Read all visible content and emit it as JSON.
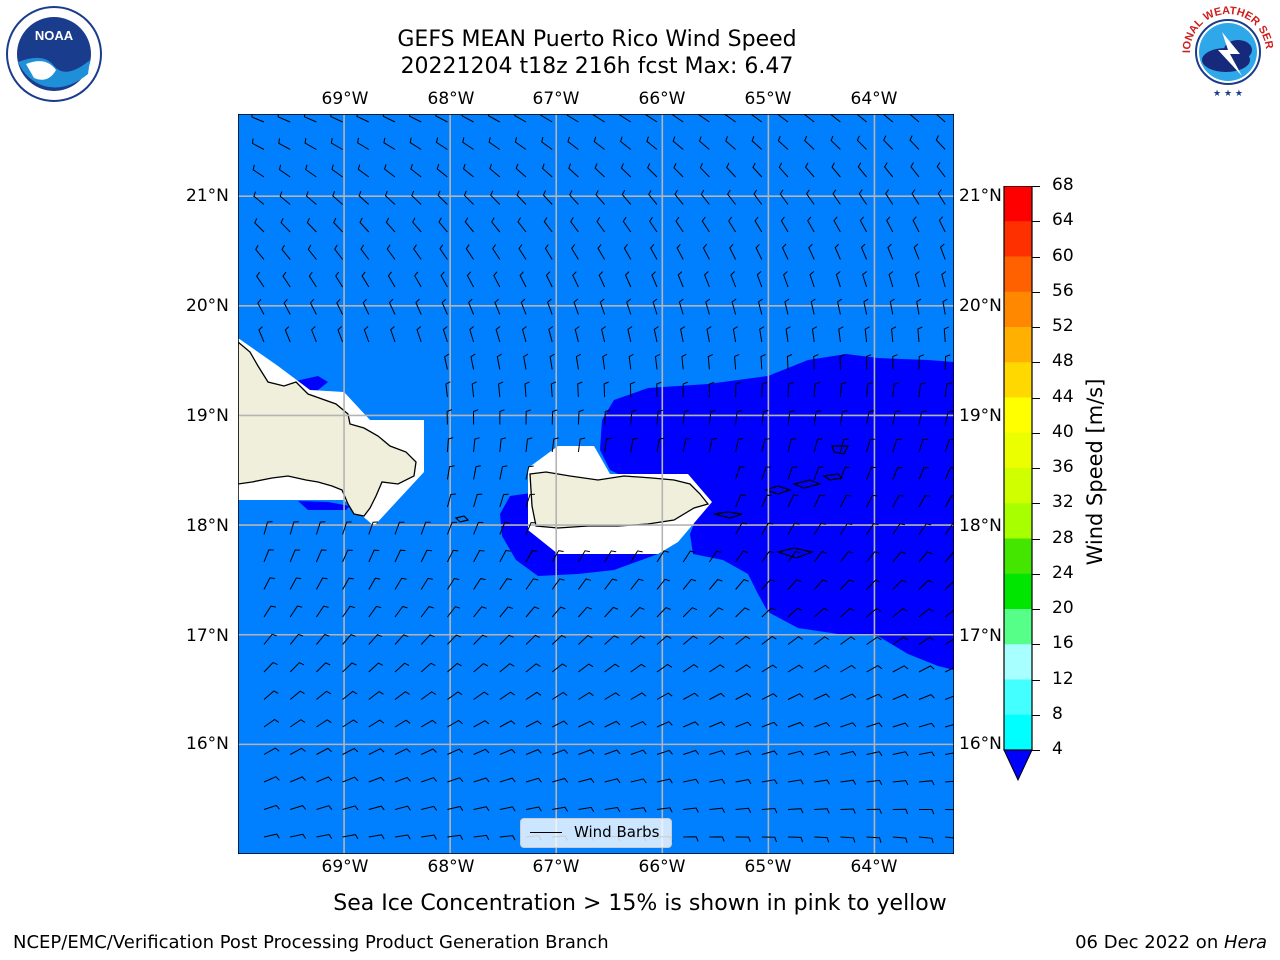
{
  "title": {
    "line1": "GEFS MEAN Puerto Rico Wind Speed",
    "line2": "20221204 t18z 216h fcst   Max: 6.47"
  },
  "map": {
    "lon_labels": [
      "69°W",
      "68°W",
      "67°W",
      "66°W",
      "65°W",
      "64°W"
    ],
    "lat_labels": [
      "21°N",
      "20°N",
      "19°N",
      "18°N",
      "17°N",
      "16°N"
    ],
    "lon_range": [
      -70.0,
      -63.25
    ],
    "lat_range": [
      15.0,
      21.75
    ],
    "projection": "PlateCarree",
    "grid": true,
    "colors": {
      "ocean_4_8": "#0080ff",
      "ocean_below_4": "#0000ff",
      "land": "#efefdc",
      "land_mask": "#ffffff",
      "gridline": "#b4b4b4"
    }
  },
  "legend": {
    "label": "Wind Barbs"
  },
  "colorbar": {
    "label": "Wind Speed [m/s]",
    "ticks": [
      "68",
      "64",
      "60",
      "56",
      "52",
      "48",
      "44",
      "40",
      "36",
      "32",
      "28",
      "24",
      "20",
      "16",
      "12",
      "8",
      "4"
    ],
    "colors": [
      "#ff0000",
      "#ff3000",
      "#ff6000",
      "#ff8800",
      "#ffb000",
      "#ffd800",
      "#ffff00",
      "#ecff00",
      "#d0ff00",
      "#a8ff00",
      "#44e600",
      "#00e600",
      "#55ff88",
      "#a8ffff",
      "#44ffff",
      "#00ffff",
      "#0080ff"
    ],
    "extend_min_color": "#0000ff"
  },
  "bottom_note": "Sea Ice Concentration > 15% is shown in pink to yellow",
  "footer": {
    "left": "NCEP/EMC/Verification Post Processing Product Generation Branch",
    "right_prefix": "06 Dec 2022 on ",
    "right_machine": "Hera"
  },
  "logos": {
    "left": "NOAA",
    "right_text": "NATIONAL WEATHER SERVICE"
  }
}
